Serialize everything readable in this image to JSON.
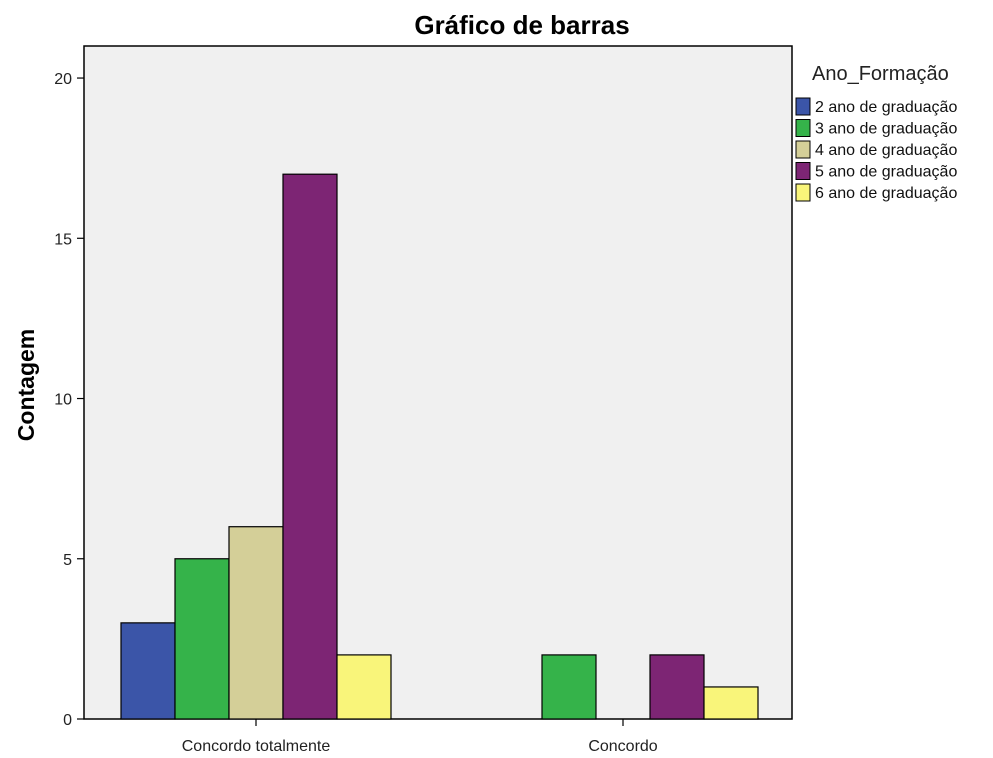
{
  "chart_data": {
    "type": "bar",
    "title": "Gráfico de barras",
    "xlabel": "",
    "ylabel": "Contagem",
    "ylim": [
      0,
      21
    ],
    "yticks": [
      0,
      5,
      10,
      15,
      20
    ],
    "grid": false,
    "legend_position": "right",
    "legend_title": "Ano_Formação",
    "categories": [
      "Concordo totalmente",
      "Concordo"
    ],
    "series": [
      {
        "name": "2 ano de graduação",
        "color": "#3b55a8",
        "values": [
          3,
          0
        ]
      },
      {
        "name": "3 ano de graduação",
        "color": "#35b34a",
        "values": [
          5,
          2
        ]
      },
      {
        "name": "4 ano de graduação",
        "color": "#d4cf98",
        "values": [
          6,
          0
        ]
      },
      {
        "name": "5 ano de graduação",
        "color": "#7d2574",
        "values": [
          17,
          2
        ]
      },
      {
        "name": "6 ano de graduação",
        "color": "#f9f57a",
        "values": [
          2,
          1
        ]
      }
    ],
    "plot_background": "#f0f0f0"
  }
}
